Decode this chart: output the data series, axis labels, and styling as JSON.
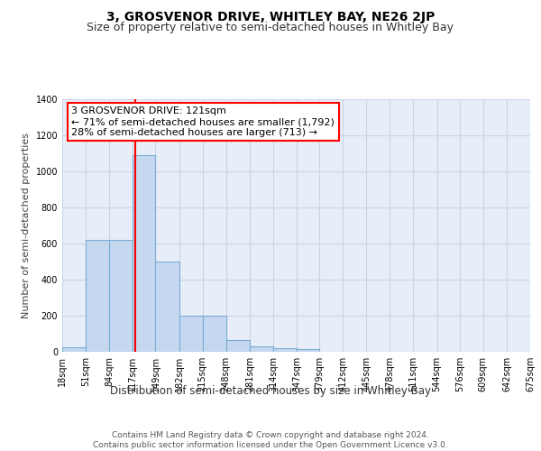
{
  "title": "3, GROSVENOR DRIVE, WHITLEY BAY, NE26 2JP",
  "subtitle": "Size of property relative to semi-detached houses in Whitley Bay",
  "xlabel": "Distribution of semi-detached houses by size in Whitley Bay",
  "ylabel": "Number of semi-detached properties",
  "bar_edges": [
    18,
    51,
    84,
    117,
    149,
    182,
    215,
    248,
    281,
    314,
    347,
    379,
    412,
    445,
    478,
    511,
    544,
    576,
    609,
    642,
    675
  ],
  "bar_heights": [
    25,
    620,
    620,
    1090,
    500,
    200,
    200,
    65,
    30,
    20,
    15,
    0,
    0,
    0,
    0,
    0,
    0,
    0,
    0,
    0
  ],
  "bar_color": "#c5d8f0",
  "bar_edgecolor": "#7aadd4",
  "property_line_x": 121,
  "property_line_color": "red",
  "annotation_text": "3 GROSVENOR DRIVE: 121sqm\n← 71% of semi-detached houses are smaller (1,792)\n28% of semi-detached houses are larger (713) →",
  "annotation_box_color": "white",
  "annotation_box_edgecolor": "red",
  "ylim": [
    0,
    1400
  ],
  "yticks": [
    0,
    200,
    400,
    600,
    800,
    1000,
    1200,
    1400
  ],
  "tick_labels": [
    "18sqm",
    "51sqm",
    "84sqm",
    "117sqm",
    "149sqm",
    "182sqm",
    "215sqm",
    "248sqm",
    "281sqm",
    "314sqm",
    "347sqm",
    "379sqm",
    "412sqm",
    "445sqm",
    "478sqm",
    "511sqm",
    "544sqm",
    "576sqm",
    "609sqm",
    "642sqm",
    "675sqm"
  ],
  "grid_color": "#c8d4e8",
  "background_color": "#e8eef8",
  "footer_text": "Contains HM Land Registry data © Crown copyright and database right 2024.\nContains public sector information licensed under the Open Government Licence v3.0.",
  "title_fontsize": 10,
  "subtitle_fontsize": 9,
  "xlabel_fontsize": 8.5,
  "ylabel_fontsize": 8,
  "tick_fontsize": 7,
  "annotation_fontsize": 8,
  "footer_fontsize": 6.5
}
